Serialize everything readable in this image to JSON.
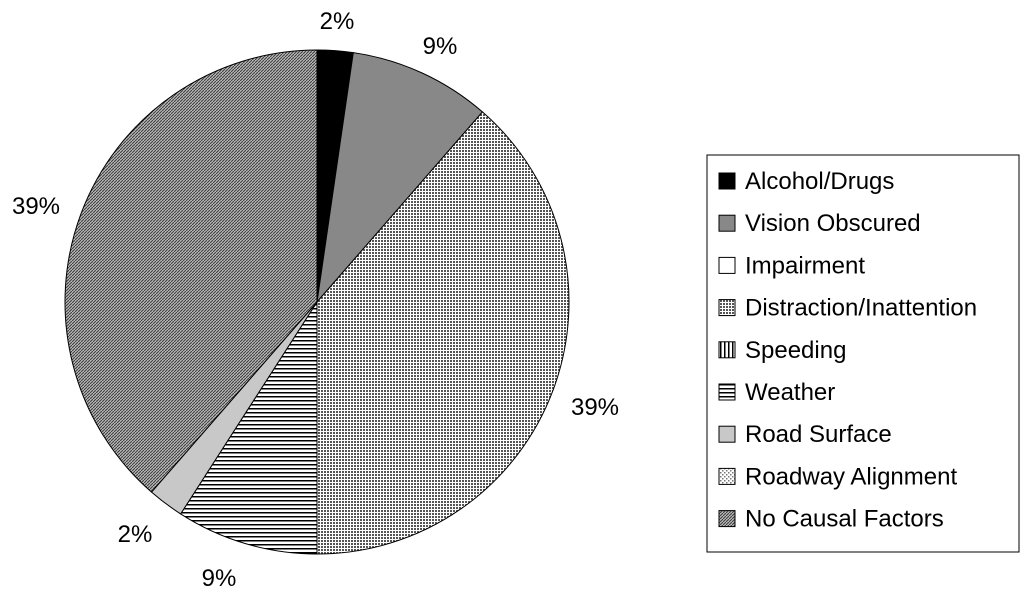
{
  "chart_data": {
    "type": "pie",
    "categories": [
      "Alcohol/Drugs",
      "Vision Obscured",
      "Impairment",
      "Distraction/Inattention",
      "Speeding",
      "Weather",
      "Road Surface",
      "Roadway Alignment",
      "No Causal Factors"
    ],
    "values": [
      2.3,
      9.1,
      0,
      38.6,
      0,
      9.1,
      2.3,
      0,
      38.6
    ],
    "data_labels": [
      "2%",
      "9%",
      "",
      "39%",
      "",
      "9%",
      "2%",
      "",
      "39%"
    ],
    "legend_placement": "right",
    "fills": [
      "#000000",
      "#888888",
      "#ffffff",
      "dots-dense",
      "vlines",
      "hlines",
      "#c8c8c8",
      "dots-light",
      "diag-dense"
    ]
  }
}
